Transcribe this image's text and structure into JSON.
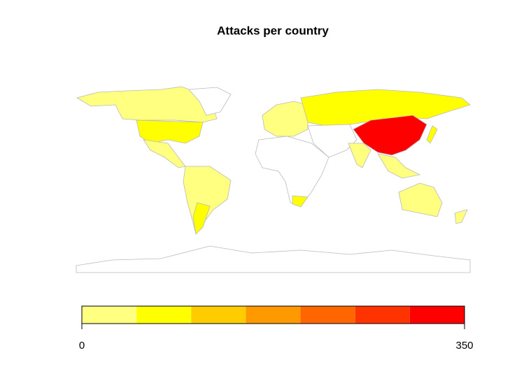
{
  "chart_data": {
    "type": "choropleth",
    "title": "Attacks per country",
    "colors": [
      "#ffff80",
      "#ffff00",
      "#ffcc00",
      "#ff9900",
      "#ff6600",
      "#ff3300",
      "#ff0000"
    ],
    "clim": [
      0,
      350
    ],
    "cticks": [
      0,
      350
    ]
  }
}
